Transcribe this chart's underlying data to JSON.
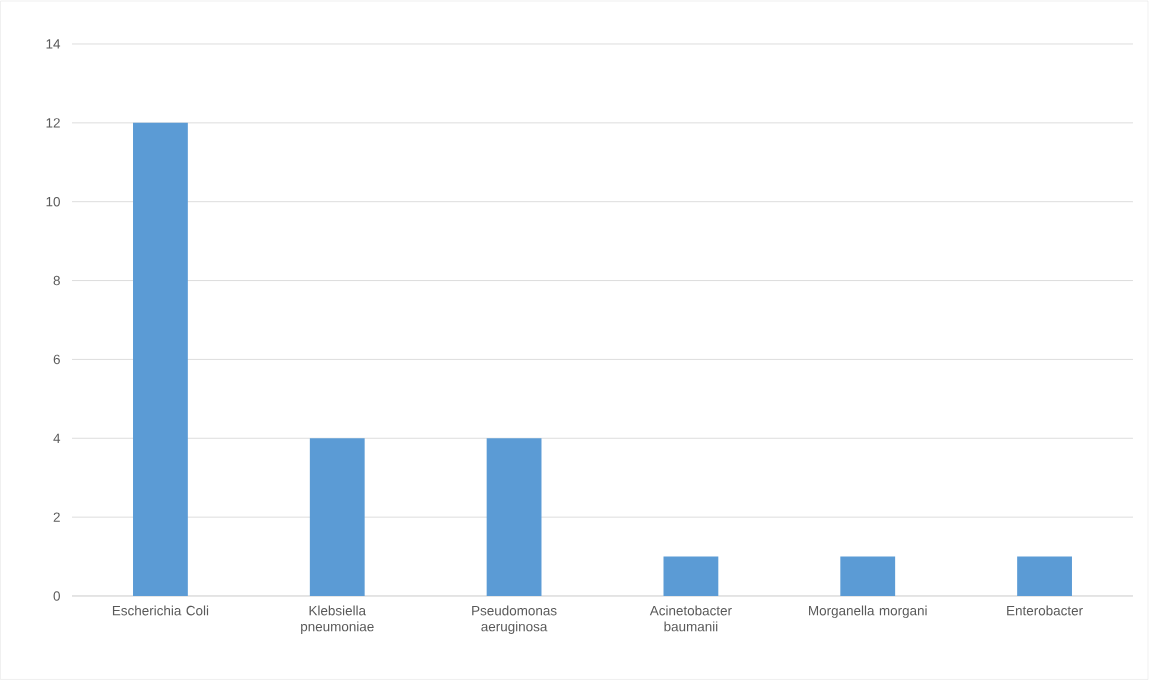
{
  "chart_data": {
    "type": "bar",
    "categories": [
      "Escherichia Coli",
      "Klebsiella pneumoniae",
      "Pseudomonas aeruginosa",
      "Acinetobacter baumanii",
      "Morganella morgani",
      "Enterobacter"
    ],
    "values": [
      12,
      4,
      4,
      1,
      1,
      1
    ],
    "color": "#5b9bd5",
    "ylim": [
      0,
      14
    ],
    "yticks": [
      0,
      2,
      4,
      6,
      8,
      10,
      12,
      14
    ],
    "grid": "y"
  }
}
